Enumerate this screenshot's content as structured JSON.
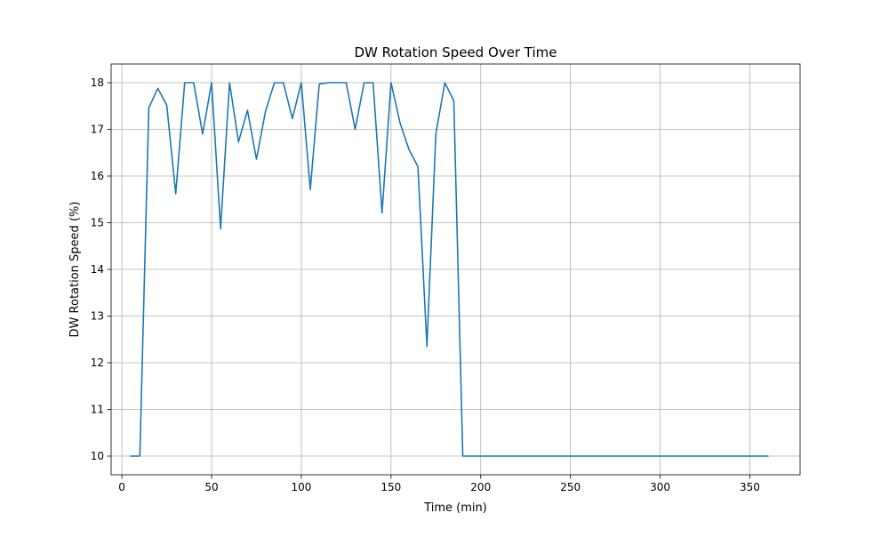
{
  "chart_data": {
    "type": "line",
    "title": "DW Rotation Speed Over Time",
    "xlabel": "Time (min)",
    "ylabel": "DW Rotation Speed (%)",
    "xlim": [
      -6,
      378
    ],
    "ylim": [
      9.6,
      18.4
    ],
    "xticks": [
      0,
      50,
      100,
      150,
      200,
      250,
      300,
      350
    ],
    "yticks": [
      10,
      11,
      12,
      13,
      14,
      15,
      16,
      17,
      18
    ],
    "grid": true,
    "series": [
      {
        "color": "#1f77b4",
        "x": [
          5,
          10,
          15,
          20,
          25,
          30,
          35,
          40,
          45,
          50,
          55,
          60,
          65,
          70,
          75,
          80,
          85,
          90,
          95,
          100,
          105,
          110,
          115,
          120,
          125,
          130,
          135,
          140,
          145,
          150,
          155,
          160,
          165,
          170,
          175,
          180,
          185,
          190,
          195,
          200,
          210,
          220,
          230,
          240,
          250,
          260,
          270,
          280,
          290,
          300,
          310,
          320,
          330,
          340,
          350,
          360
        ],
        "y": [
          10.0,
          10.0,
          17.46,
          17.88,
          17.52,
          15.62,
          18.0,
          18.0,
          16.9,
          18.0,
          14.87,
          18.0,
          16.73,
          17.41,
          16.36,
          17.38,
          18.0,
          18.0,
          17.23,
          18.0,
          15.71,
          17.97,
          18.0,
          18.0,
          18.0,
          17.0,
          18.0,
          18.0,
          15.21,
          18.0,
          17.14,
          16.57,
          16.2,
          12.35,
          16.91,
          18.0,
          17.61,
          10.0,
          10.0,
          10.0,
          10.0,
          10.0,
          10.0,
          10.0,
          10.0,
          10.0,
          10.0,
          10.0,
          10.0,
          10.0,
          10.0,
          10.0,
          10.0,
          10.0,
          10.0,
          10.0
        ]
      }
    ]
  }
}
